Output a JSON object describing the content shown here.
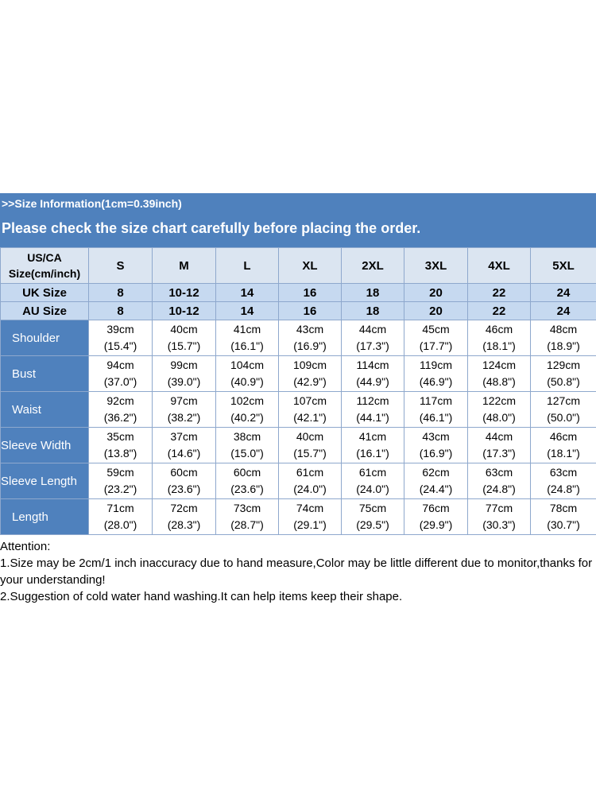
{
  "header": {
    "info": ">>Size Information(1cm=0.39inch)",
    "notice": "Please check the size chart carefully before placing the order."
  },
  "table": {
    "us_label_line1": "US/CA",
    "us_label_line2": "Size(cm/inch)",
    "sizes": [
      "S",
      "M",
      "L",
      "XL",
      "2XL",
      "3XL",
      "4XL",
      "5XL"
    ],
    "uk": {
      "label": "UK Size",
      "values": [
        "8",
        "10-12",
        "14",
        "16",
        "18",
        "20",
        "22",
        "24"
      ]
    },
    "au": {
      "label": "AU Size",
      "values": [
        "8",
        "10-12",
        "14",
        "16",
        "18",
        "20",
        "22",
        "24"
      ]
    },
    "measurements": [
      {
        "label": "Shoulder",
        "cm": [
          "39cm",
          "40cm",
          "41cm",
          "43cm",
          "44cm",
          "45cm",
          "46cm",
          "48cm"
        ],
        "inch": [
          "(15.4\")",
          "(15.7\")",
          "(16.1\")",
          "(16.9\")",
          "(17.3\")",
          "(17.7\")",
          "(18.1\")",
          "(18.9\")"
        ]
      },
      {
        "label": "Bust",
        "cm": [
          "94cm",
          "99cm",
          "104cm",
          "109cm",
          "114cm",
          "119cm",
          "124cm",
          "129cm"
        ],
        "inch": [
          "(37.0\")",
          "(39.0\")",
          "(40.9\")",
          "(42.9\")",
          "(44.9\")",
          "(46.9\")",
          "(48.8\")",
          "(50.8\")"
        ]
      },
      {
        "label": "Waist",
        "cm": [
          "92cm",
          "97cm",
          "102cm",
          "107cm",
          "112cm",
          "117cm",
          "122cm",
          "127cm"
        ],
        "inch": [
          "(36.2\")",
          "(38.2\")",
          "(40.2\")",
          "(42.1\")",
          "(44.1\")",
          "(46.1\")",
          "(48.0\")",
          "(50.0\")"
        ]
      },
      {
        "label": "Sleeve Width",
        "cm": [
          "35cm",
          "37cm",
          "38cm",
          "40cm",
          "41cm",
          "43cm",
          "44cm",
          "46cm"
        ],
        "inch": [
          "(13.8\")",
          "(14.6\")",
          "(15.0\")",
          "(15.7\")",
          "(16.1\")",
          "(16.9\")",
          "(17.3\")",
          "(18.1\")"
        ]
      },
      {
        "label": "Sleeve Length",
        "cm": [
          "59cm",
          "60cm",
          "60cm",
          "61cm",
          "61cm",
          "62cm",
          "63cm",
          "63cm"
        ],
        "inch": [
          "(23.2\")",
          "(23.6\")",
          "(23.6\")",
          "(24.0\")",
          "(24.0\")",
          "(24.4\")",
          "(24.8\")",
          "(24.8\")"
        ]
      },
      {
        "label": "Length",
        "cm": [
          "71cm",
          "72cm",
          "73cm",
          "74cm",
          "75cm",
          "76cm",
          "77cm",
          "78cm"
        ],
        "inch": [
          "(28.0\")",
          "(28.3\")",
          "(28.7\")",
          "(29.1\")",
          "(29.5\")",
          "(29.9\")",
          "(30.3\")",
          "(30.7\")"
        ]
      }
    ]
  },
  "notes": {
    "title": "Attention:",
    "note1": "1.Size may be 2cm/1 inch inaccuracy due to hand measure,Color may be little different due to monitor,thanks for your understanding!",
    "note2": "2.Suggestion of cold water hand washing.It can help items keep their shape."
  },
  "colors": {
    "banner": "#4f81bd",
    "header_row": "#dbe5f1",
    "sub_row": "#c6d9f0",
    "label_cell": "#4f81bd",
    "grid": "#8ea8cd"
  }
}
